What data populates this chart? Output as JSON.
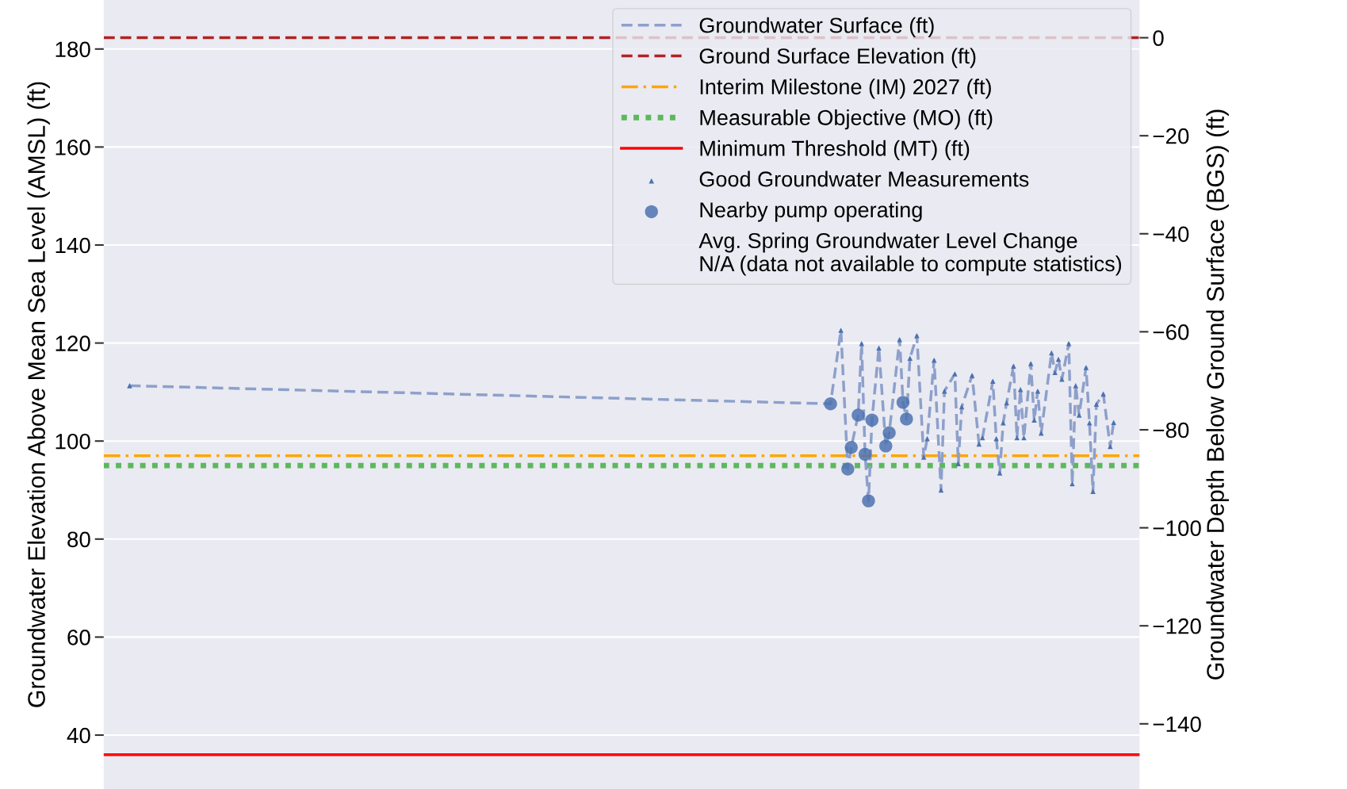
{
  "chart_data": {
    "type": "line",
    "ylabel": "Groundwater Elevation Above Mean Sea Level (AMSL) (ft)",
    "y2label": "Groundwater Depth Below Ground Surface (BGS) (ft)",
    "ylim": [
      29,
      190
    ],
    "yticks": [
      40,
      60,
      80,
      100,
      120,
      140,
      160,
      180
    ],
    "y2lim": [
      -153.3,
      7.7
    ],
    "y2ticks": [
      {
        "value": -140,
        "label": "−140"
      },
      {
        "value": -120,
        "label": "−120"
      },
      {
        "value": -100,
        "label": "−100"
      },
      {
        "value": -80,
        "label": "−80"
      },
      {
        "value": -60,
        "label": "−60"
      },
      {
        "value": -40,
        "label": "−40"
      },
      {
        "value": -20,
        "label": "−20"
      },
      0
    ],
    "grid": "y",
    "legend": "top right",
    "categories": [
      null,
      null,
      null,
      null,
      null,
      null,
      null,
      null,
      null,
      null,
      null,
      null,
      null,
      null,
      null,
      null,
      null,
      null,
      null,
      null,
      null,
      null,
      null,
      null,
      null,
      null,
      null,
      null,
      null,
      null,
      null,
      null,
      null,
      null,
      null,
      null,
      null,
      null,
      null,
      null,
      null,
      null,
      null,
      null,
      null,
      null,
      null,
      null,
      null,
      null,
      null,
      null,
      null,
      null,
      null,
      null,
      null,
      null,
      null,
      null,
      null,
      null,
      null,
      null,
      null,
      null,
      null,
      null,
      null,
      null,
      null,
      null,
      null,
      null,
      null,
      null,
      null,
      null,
      null,
      null,
      null,
      null,
      null,
      null,
      null,
      null,
      null,
      null,
      null,
      null,
      null,
      null,
      null,
      null,
      null,
      null,
      null,
      null,
      null,
      null,
      null,
      null,
      null,
      null,
      null,
      null,
      null,
      null,
      null,
      null,
      null,
      null,
      null,
      null,
      null,
      null,
      null,
      null,
      null,
      null,
      null,
      null,
      null,
      null,
      null,
      null,
      null,
      null,
      null,
      null,
      null,
      null,
      null,
      null,
      null,
      null,
      null,
      null,
      null,
      null,
      null,
      null,
      null,
      null,
      null,
      null,
      null,
      null,
      null,
      null,
      null,
      null,
      null,
      null,
      null,
      null,
      null,
      null,
      null,
      null,
      null,
      null,
      null,
      null,
      null,
      null,
      null,
      null,
      null,
      null,
      null,
      null,
      null,
      null,
      null,
      null,
      null,
      null,
      null,
      null,
      null,
      null,
      null,
      null,
      null,
      null,
      null,
      null,
      null,
      null,
      null,
      null,
      null,
      null,
      null,
      null,
      null,
      null,
      null,
      null,
      null,
      null,
      null,
      null,
      null,
      null,
      null,
      null,
      null,
      null,
      null,
      null,
      null,
      null,
      null,
      null,
      null,
      null,
      null,
      null,
      null,
      null,
      null,
      null,
      null,
      null,
      null,
      null,
      null,
      null,
      null,
      null,
      null,
      null,
      null,
      null,
      null,
      null,
      null,
      null,
      null,
      null,
      null,
      null,
      null,
      null,
      null,
      null,
      null,
      null,
      null,
      null,
      null,
      null,
      null,
      null,
      null,
      null,
      null,
      null,
      null,
      null,
      null,
      null,
      null,
      null,
      null,
      null,
      null,
      null,
      null,
      null,
      null,
      null,
      null,
      null,
      null,
      null,
      null,
      null,
      null,
      null,
      null,
      null,
      null,
      null,
      null,
      null,
      null,
      null,
      null,
      null,
      null,
      null,
      null,
      null,
      null,
      null,
      null,
      null
    ],
    "series": [
      {
        "name": "Groundwater Surface (ft)",
        "line_style": "dashed",
        "marker": "none",
        "color": "#8da0cb",
        "values": [
          null,
          null,
          null,
          null,
          null,
          null,
          null,
          111.3,
          null,
          null,
          null,
          null,
          null,
          null,
          null,
          null,
          null,
          null,
          null,
          null,
          null,
          null,
          null,
          null,
          null,
          null,
          null,
          null,
          null,
          null,
          null,
          null,
          null,
          null,
          null,
          null,
          null,
          null,
          null,
          null,
          null,
          null,
          null,
          null,
          null,
          null,
          null,
          null,
          null,
          null,
          null,
          null,
          null,
          null,
          null,
          null,
          null,
          null,
          null,
          null,
          null,
          null,
          null,
          null,
          null,
          null,
          null,
          null,
          null,
          null,
          null,
          null,
          null,
          null,
          null,
          null,
          null,
          null,
          null,
          null,
          null,
          null,
          null,
          null,
          null,
          null,
          null,
          null,
          null,
          null,
          null,
          null,
          null,
          null,
          null,
          null,
          null,
          null,
          null,
          null,
          null,
          null,
          null,
          null,
          null,
          null,
          null,
          null,
          null,
          null,
          null,
          null,
          null,
          null,
          null,
          null,
          null,
          null,
          null,
          null,
          null,
          null,
          null,
          null,
          null,
          null,
          null,
          null,
          null,
          null,
          null,
          null,
          null,
          null,
          null,
          null,
          null,
          null,
          null,
          null,
          null,
          null,
          null,
          null,
          null,
          null,
          null,
          null,
          null,
          null,
          null,
          null,
          null,
          null,
          null,
          null,
          null,
          null,
          null,
          null,
          null,
          null,
          null,
          null,
          null,
          null,
          null,
          null,
          null,
          null,
          null,
          null,
          null,
          null,
          null,
          null,
          null,
          null,
          null,
          null,
          null,
          null,
          null,
          null,
          null,
          null,
          null,
          null,
          null,
          null,
          null,
          null,
          null,
          null,
          null,
          null,
          null,
          null,
          null,
          null,
          null,
          null,
          null,
          null,
          null,
          null,
          null,
          null,
          null,
          null,
          107.6,
          null,
          null,
          122.6,
          null,
          94.3,
          98.7,
          null,
          105.3,
          119.9,
          97.3,
          87.8,
          104.3,
          null,
          119.0,
          null,
          99.0,
          101.7,
          null,
          null,
          120.7,
          107.9,
          104.5,
          116.9,
          null,
          121.5,
          null,
          96.7,
          100.5,
          null,
          116.5,
          null,
          90.0,
          110.2,
          null,
          null,
          113.7,
          95.4,
          107.0,
          null,
          null,
          113.4,
          null,
          99.4,
          100.7,
          null,
          null,
          112.2,
          100.5,
          93.5,
          103.7,
          107.8,
          null,
          115.3,
          100.7,
          110.5,
          100.7,
          null,
          115.8,
          104.3,
          110.2,
          101.6,
          null,
          null,
          118.0,
          114.0,
          116.7,
          112.6,
          null,
          119.9,
          91.3,
          111.3,
          105.3,
          null,
          115.0,
          103.7,
          89.7,
          107.5,
          null,
          109.6,
          null,
          98.9,
          103.8,
          null,
          null,
          null,
          null,
          null,
          null,
          null
        ]
      },
      {
        "name": "Good Groundwater Measurements",
        "type": "scatter",
        "marker": "triangle",
        "color": "#4c72b0",
        "values": [
          null,
          null,
          null,
          null,
          null,
          null,
          null,
          111.3,
          null,
          null,
          null,
          null,
          null,
          null,
          null,
          null,
          null,
          null,
          null,
          null,
          null,
          null,
          null,
          null,
          null,
          null,
          null,
          null,
          null,
          null,
          null,
          null,
          null,
          null,
          null,
          null,
          null,
          null,
          null,
          null,
          null,
          null,
          null,
          null,
          null,
          null,
          null,
          null,
          null,
          null,
          null,
          null,
          null,
          null,
          null,
          null,
          null,
          null,
          null,
          null,
          null,
          null,
          null,
          null,
          null,
          null,
          null,
          null,
          null,
          null,
          null,
          null,
          null,
          null,
          null,
          null,
          null,
          null,
          null,
          null,
          null,
          null,
          null,
          null,
          null,
          null,
          null,
          null,
          null,
          null,
          null,
          null,
          null,
          null,
          null,
          null,
          null,
          null,
          null,
          null,
          null,
          null,
          null,
          null,
          null,
          null,
          null,
          null,
          null,
          null,
          null,
          null,
          null,
          null,
          null,
          null,
          null,
          null,
          null,
          null,
          null,
          null,
          null,
          null,
          null,
          null,
          null,
          null,
          null,
          null,
          null,
          null,
          null,
          null,
          null,
          null,
          null,
          null,
          null,
          null,
          null,
          null,
          null,
          null,
          null,
          null,
          null,
          null,
          null,
          null,
          null,
          null,
          null,
          null,
          null,
          null,
          null,
          null,
          null,
          null,
          null,
          null,
          null,
          null,
          null,
          null,
          null,
          null,
          null,
          null,
          null,
          null,
          null,
          null,
          null,
          null,
          null,
          null,
          null,
          null,
          null,
          null,
          null,
          null,
          null,
          null,
          null,
          null,
          null,
          null,
          null,
          null,
          null,
          null,
          null,
          null,
          null,
          null,
          null,
          null,
          null,
          null,
          null,
          null,
          null,
          null,
          null,
          null,
          null,
          null,
          null,
          null,
          null,
          122.6,
          null,
          null,
          null,
          null,
          null,
          119.9,
          null,
          null,
          null,
          null,
          119.0,
          null,
          null,
          null,
          null,
          null,
          120.7,
          null,
          null,
          116.9,
          null,
          121.5,
          null,
          96.7,
          100.5,
          null,
          116.5,
          null,
          90.0,
          110.2,
          null,
          null,
          113.7,
          95.4,
          107.0,
          null,
          null,
          113.4,
          null,
          99.4,
          100.7,
          null,
          null,
          112.2,
          100.5,
          93.5,
          103.7,
          107.8,
          null,
          115.3,
          100.7,
          110.5,
          100.7,
          null,
          115.8,
          104.3,
          110.2,
          101.6,
          null,
          null,
          118.0,
          114.0,
          116.7,
          112.6,
          null,
          119.9,
          91.3,
          111.3,
          105.3,
          null,
          115.0,
          103.7,
          89.7,
          107.5,
          null,
          109.6,
          null,
          98.9,
          103.8,
          null,
          null,
          null,
          null,
          null,
          null,
          null
        ]
      },
      {
        "name": "Nearby pump operating",
        "type": "scatter",
        "marker": "circle",
        "color": "#4c72b0",
        "values": [
          null,
          null,
          null,
          null,
          null,
          null,
          null,
          null,
          null,
          null,
          null,
          null,
          null,
          null,
          null,
          null,
          null,
          null,
          null,
          null,
          null,
          null,
          null,
          null,
          null,
          null,
          null,
          null,
          null,
          null,
          null,
          null,
          null,
          null,
          null,
          null,
          null,
          null,
          null,
          null,
          null,
          null,
          null,
          null,
          null,
          null,
          null,
          null,
          null,
          null,
          null,
          null,
          null,
          null,
          null,
          null,
          null,
          null,
          null,
          null,
          null,
          null,
          null,
          null,
          null,
          null,
          null,
          null,
          null,
          null,
          null,
          null,
          null,
          null,
          null,
          null,
          null,
          null,
          null,
          null,
          null,
          null,
          null,
          null,
          null,
          null,
          null,
          null,
          null,
          null,
          null,
          null,
          null,
          null,
          null,
          null,
          null,
          null,
          null,
          null,
          null,
          null,
          null,
          null,
          null,
          null,
          null,
          null,
          null,
          null,
          null,
          null,
          null,
          null,
          null,
          null,
          null,
          null,
          null,
          null,
          null,
          null,
          null,
          null,
          null,
          null,
          null,
          null,
          null,
          null,
          null,
          null,
          null,
          null,
          null,
          null,
          null,
          null,
          null,
          null,
          null,
          null,
          null,
          null,
          null,
          null,
          null,
          null,
          null,
          null,
          null,
          null,
          null,
          null,
          null,
          null,
          null,
          null,
          null,
          null,
          null,
          null,
          null,
          null,
          null,
          null,
          null,
          null,
          null,
          null,
          null,
          null,
          null,
          null,
          null,
          null,
          null,
          null,
          null,
          null,
          null,
          null,
          null,
          null,
          null,
          null,
          null,
          null,
          null,
          null,
          null,
          null,
          null,
          null,
          null,
          null,
          null,
          null,
          null,
          null,
          null,
          null,
          null,
          null,
          null,
          null,
          null,
          null,
          null,
          null,
          107.6,
          null,
          null,
          null,
          null,
          94.3,
          98.7,
          null,
          105.3,
          null,
          97.3,
          87.8,
          104.3,
          null,
          null,
          null,
          99.0,
          101.7,
          null,
          null,
          null,
          107.9,
          104.5,
          null,
          null,
          null,
          null,
          null,
          null,
          null,
          null,
          null,
          null,
          null,
          null,
          null,
          null,
          null,
          null,
          null,
          null,
          null,
          null,
          null,
          null,
          null,
          null,
          null,
          null,
          null,
          null,
          null,
          null,
          null,
          null,
          null,
          null,
          null,
          null,
          null,
          null,
          null,
          null,
          null,
          null,
          null,
          null,
          null,
          null,
          null,
          null,
          null,
          null,
          null,
          null,
          null,
          null,
          null,
          null,
          null,
          null,
          null,
          null,
          null,
          null,
          null,
          null,
          null,
          null,
          null
        ]
      }
    ],
    "ref_lines": [
      {
        "axis": "y2",
        "value": 0,
        "label": "Ground Surface Elevation (ft)",
        "color": "#b22222",
        "line_style": "dashed"
      },
      {
        "axis": "y",
        "value": 97,
        "label": "Interim Milestone (IM) 2027 (ft)",
        "color": "#ffa500",
        "line_style": "dashdot"
      },
      {
        "axis": "y",
        "value": 95,
        "label": "Measurable Objective (MO) (ft)",
        "color": "#5cb85c",
        "line_style": "dotted"
      },
      {
        "axis": "y",
        "value": 36,
        "label": "Minimum Threshold (MT) (ft)",
        "color": "#ff0000",
        "line_style": "solid"
      }
    ],
    "annotations": [
      "Avg. Spring Groundwater Level Change\nN/A (data not available to compute statistics)"
    ]
  }
}
